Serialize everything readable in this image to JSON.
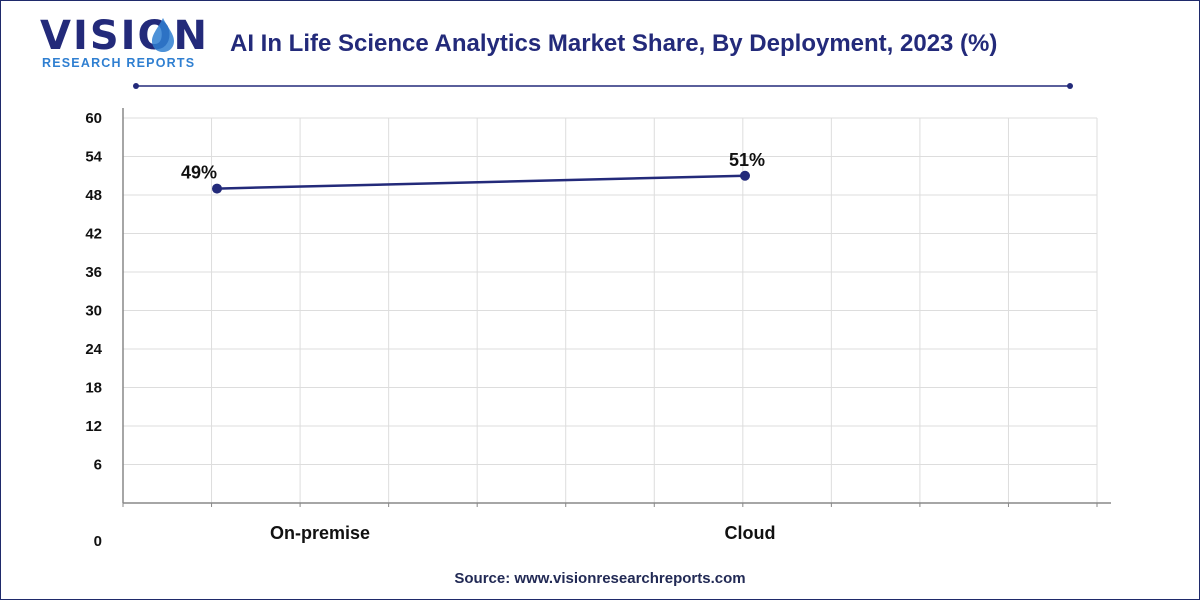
{
  "header": {
    "logo_main": "VISION",
    "logo_sub": "RESEARCH REPORTS",
    "title": "AI In Life Science Analytics Market Share, By Deployment, 2023 (%)"
  },
  "footer": {
    "source": "Source: www.visionresearchreports.com"
  },
  "colors": {
    "brand": "#232a7a",
    "accent": "#2f7fd1",
    "line": "#232a7a",
    "grid": "#dddddd"
  },
  "chart_data": {
    "type": "line",
    "title": "AI In Life Science Analytics Market Share, By Deployment, 2023 (%)",
    "categories": [
      "On-premise",
      "Cloud"
    ],
    "series": [
      {
        "values": [
          49,
          51
        ],
        "labels": [
          "49%",
          "51%"
        ]
      }
    ],
    "ylim": [
      0,
      60
    ],
    "yticks": [
      0,
      6,
      12,
      18,
      24,
      30,
      36,
      42,
      48,
      54,
      60
    ],
    "grid": true,
    "legend": "none"
  }
}
